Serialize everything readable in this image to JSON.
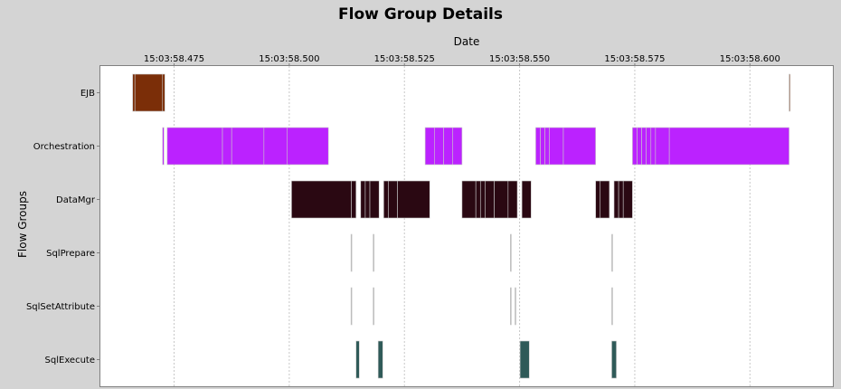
{
  "chart_data": {
    "type": "gantt",
    "title": "Flow Group Details",
    "xlabel": "Date",
    "ylabel": "Flow Groups",
    "x_unit": "time (HH:MM:SS.mmm)",
    "xlim": [
      "15:03:58.459",
      "15:03:58.618"
    ],
    "x_ticks": [
      "15:03:58.475",
      "15:03:58.500",
      "15:03:58.525",
      "15:03:58.550",
      "15:03:58.575",
      "15:03:58.600"
    ],
    "grid": true,
    "legend": "none",
    "categories": [
      "EJB",
      "Orchestration",
      "DataMgr",
      "SqlPrepare",
      "SqlSetAttribute",
      "SqlExecute"
    ],
    "series": [
      {
        "category": "EJB",
        "color": "#7b2e08",
        "segments": [
          [
            "15:03:58.466",
            "15:03:58.4665"
          ],
          [
            "15:03:58.4665",
            "15:03:58.4725"
          ],
          [
            "15:03:58.4725",
            "15:03:58.473"
          ],
          [
            "15:03:58.6085",
            "15:03:58.6087"
          ]
        ]
      },
      {
        "category": "Orchestration",
        "color": "#bb22ff",
        "segments": [
          [
            "15:03:58.4725",
            "15:03:58.4728"
          ],
          [
            "15:03:58.4735",
            "15:03:58.4855"
          ],
          [
            "15:03:58.4855",
            "15:03:58.4875"
          ],
          [
            "15:03:58.4875",
            "15:03:58.4945"
          ],
          [
            "15:03:58.4945",
            "15:03:58.4995"
          ],
          [
            "15:03:58.4995",
            "15:03:58.5085"
          ],
          [
            "15:03:58.5295",
            "15:03:58.5315"
          ],
          [
            "15:03:58.5315",
            "15:03:58.5335"
          ],
          [
            "15:03:58.5335",
            "15:03:58.5355"
          ],
          [
            "15:03:58.5355",
            "15:03:58.5375"
          ],
          [
            "15:03:58.5535",
            "15:03:58.5545"
          ],
          [
            "15:03:58.5545",
            "15:03:58.5555"
          ],
          [
            "15:03:58.5555",
            "15:03:58.5565"
          ],
          [
            "15:03:58.5565",
            "15:03:58.5595"
          ],
          [
            "15:03:58.5595",
            "15:03:58.5665"
          ],
          [
            "15:03:58.5745",
            "15:03:58.5755"
          ],
          [
            "15:03:58.5755",
            "15:03:58.5765"
          ],
          [
            "15:03:58.5765",
            "15:03:58.5775"
          ],
          [
            "15:03:58.5775",
            "15:03:58.5785"
          ],
          [
            "15:03:58.5785",
            "15:03:58.5795"
          ],
          [
            "15:03:58.5795",
            "15:03:58.5825"
          ],
          [
            "15:03:58.5825",
            "15:03:58.6085"
          ]
        ]
      },
      {
        "category": "DataMgr",
        "color": "#2a0812",
        "segments": [
          [
            "15:03:58.5005",
            "15:03:58.5135"
          ],
          [
            "15:03:58.5135",
            "15:03:58.5145"
          ],
          [
            "15:03:58.5155",
            "15:03:58.5165"
          ],
          [
            "15:03:58.5165",
            "15:03:58.5175"
          ],
          [
            "15:03:58.5175",
            "15:03:58.5195"
          ],
          [
            "15:03:58.5205",
            "15:03:58.5215"
          ],
          [
            "15:03:58.5215",
            "15:03:58.5235"
          ],
          [
            "15:03:58.5235",
            "15:03:58.5305"
          ],
          [
            "15:03:58.5375",
            "15:03:58.5405"
          ],
          [
            "15:03:58.5405",
            "15:03:58.5415"
          ],
          [
            "15:03:58.5415",
            "15:03:58.5425"
          ],
          [
            "15:03:58.5425",
            "15:03:58.5445"
          ],
          [
            "15:03:58.5445",
            "15:03:58.5475"
          ],
          [
            "15:03:58.5475",
            "15:03:58.5495"
          ],
          [
            "15:03:58.5505",
            "15:03:58.5525"
          ],
          [
            "15:03:58.5665",
            "15:03:58.5675"
          ],
          [
            "15:03:58.5675",
            "15:03:58.5695"
          ],
          [
            "15:03:58.5705",
            "15:03:58.5715"
          ],
          [
            "15:03:58.5715",
            "15:03:58.5725"
          ],
          [
            "15:03:58.5725",
            "15:03:58.5745"
          ]
        ]
      },
      {
        "category": "SqlPrepare",
        "color": "#a8a8a8",
        "segments": [
          [
            "15:03:58.5134",
            "15:03:58.5136"
          ],
          [
            "15:03:58.5182",
            "15:03:58.5184"
          ],
          [
            "15:03:58.5480",
            "15:03:58.5482"
          ],
          [
            "15:03:58.5700",
            "15:03:58.5702"
          ]
        ]
      },
      {
        "category": "SqlSetAttribute",
        "color": "#a8a8a8",
        "segments": [
          [
            "15:03:58.5134",
            "15:03:58.5136"
          ],
          [
            "15:03:58.5182",
            "15:03:58.5184"
          ],
          [
            "15:03:58.5480",
            "15:03:58.5482"
          ],
          [
            "15:03:58.5490",
            "15:03:58.5492"
          ],
          [
            "15:03:58.5700",
            "15:03:58.5702"
          ]
        ]
      },
      {
        "category": "SqlExecute",
        "color": "#2f5a58",
        "segments": [
          [
            "15:03:58.5145",
            "15:03:58.5152"
          ],
          [
            "15:03:58.5193",
            "15:03:58.5203"
          ],
          [
            "15:03:58.5501",
            "15:03:58.5521"
          ],
          [
            "15:03:58.5700",
            "15:03:58.5710"
          ]
        ]
      }
    ]
  }
}
